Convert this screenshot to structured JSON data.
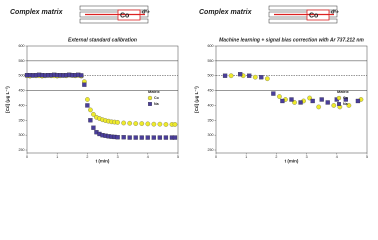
{
  "chart_data": [
    {
      "type": "scatter",
      "title": "Complex matrix",
      "subtitle": "External standard calibration",
      "schematic_labels": [
        "Co",
        "d*+"
      ],
      "x_label": "t (min)",
      "y_label": "[Cd] (μg L⁻¹)",
      "xlim": [
        0,
        5
      ],
      "xticks": [
        0,
        1,
        2,
        3,
        4,
        5
      ],
      "ylim": [
        240,
        600
      ],
      "yticks": [
        250,
        300,
        350,
        400,
        450,
        500,
        550,
        600
      ],
      "reference_lines": [
        {
          "value": 550,
          "style": "solid"
        },
        {
          "value": 500,
          "style": "dashed"
        },
        {
          "value": 450,
          "style": "solid"
        }
      ],
      "legend_title": "Matrix",
      "legend": "right",
      "series": [
        {
          "name": "Co",
          "color": "#eeea2c",
          "marker": "circle",
          "x": [
            0.0,
            0.1,
            0.2,
            0.3,
            0.4,
            0.5,
            0.6,
            0.7,
            0.8,
            0.9,
            1.0,
            1.1,
            1.2,
            1.3,
            1.4,
            1.5,
            1.6,
            1.7,
            1.8,
            1.9,
            2.0,
            2.1,
            2.2,
            2.3,
            2.4,
            2.5,
            2.6,
            2.7,
            2.8,
            2.9,
            3.0,
            3.2,
            3.4,
            3.6,
            3.8,
            4.0,
            4.2,
            4.4,
            4.6,
            4.8,
            4.9
          ],
          "values": [
            500,
            499,
            501,
            500,
            500,
            499,
            500,
            501,
            500,
            500,
            499,
            500,
            501,
            500,
            502,
            501,
            500,
            501,
            499,
            480,
            420,
            385,
            370,
            360,
            356,
            352,
            349,
            347,
            345,
            344,
            343,
            341,
            340,
            339,
            339,
            338,
            337,
            337,
            336,
            336,
            336
          ]
        },
        {
          "name": "Na",
          "color": "#4a3e9a",
          "marker": "square",
          "x": [
            0.0,
            0.1,
            0.2,
            0.3,
            0.4,
            0.5,
            0.6,
            0.7,
            0.8,
            0.9,
            1.0,
            1.1,
            1.2,
            1.3,
            1.4,
            1.5,
            1.6,
            1.7,
            1.8,
            1.9,
            2.0,
            2.1,
            2.2,
            2.3,
            2.4,
            2.5,
            2.6,
            2.7,
            2.8,
            2.9,
            3.0,
            3.2,
            3.4,
            3.6,
            3.8,
            4.0,
            4.2,
            4.4,
            4.6,
            4.8,
            4.9
          ],
          "values": [
            502,
            502,
            501,
            502,
            503,
            502,
            501,
            502,
            502,
            503,
            502,
            502,
            501,
            502,
            503,
            502,
            502,
            503,
            501,
            470,
            400,
            350,
            325,
            310,
            304,
            300,
            298,
            296,
            295,
            294,
            293,
            293,
            292,
            292,
            292,
            292,
            292,
            292,
            292,
            292,
            292
          ]
        }
      ]
    },
    {
      "type": "scatter",
      "title": "Complex matrix",
      "subtitle": "Machine learning + signal bias correction with Ar 737.212 nm",
      "schematic_labels": [
        "Co",
        "d*+"
      ],
      "x_label": "t (min)",
      "y_label": "[Cd] (μg L⁻¹)",
      "xlim": [
        0,
        5
      ],
      "xticks": [
        0,
        1,
        2,
        3,
        4,
        5
      ],
      "ylim": [
        240,
        600
      ],
      "yticks": [
        250,
        300,
        350,
        400,
        450,
        500,
        550,
        600
      ],
      "reference_lines": [
        {
          "value": 550,
          "style": "solid"
        },
        {
          "value": 500,
          "style": "dashed"
        },
        {
          "value": 450,
          "style": "solid"
        }
      ],
      "legend_title": "Matrix",
      "legend": "right",
      "series": [
        {
          "name": "Co",
          "color": "#eeea2c",
          "marker": "circle",
          "x": [
            0.5,
            0.9,
            1.3,
            1.7,
            2.1,
            2.3,
            2.6,
            2.9,
            3.1,
            3.4,
            3.9,
            4.1,
            4.4,
            4.8
          ],
          "values": [
            500,
            500,
            495,
            490,
            430,
            420,
            410,
            415,
            425,
            395,
            400,
            395,
            400,
            420
          ]
        },
        {
          "name": "Na",
          "color": "#4a3e9a",
          "marker": "square",
          "x": [
            0.3,
            0.8,
            1.1,
            1.5,
            1.9,
            2.2,
            2.5,
            2.8,
            3.2,
            3.5,
            3.7,
            4.0,
            4.3,
            4.7
          ],
          "values": [
            500,
            505,
            500,
            495,
            440,
            415,
            420,
            410,
            415,
            420,
            410,
            420,
            420,
            415
          ]
        }
      ]
    }
  ]
}
